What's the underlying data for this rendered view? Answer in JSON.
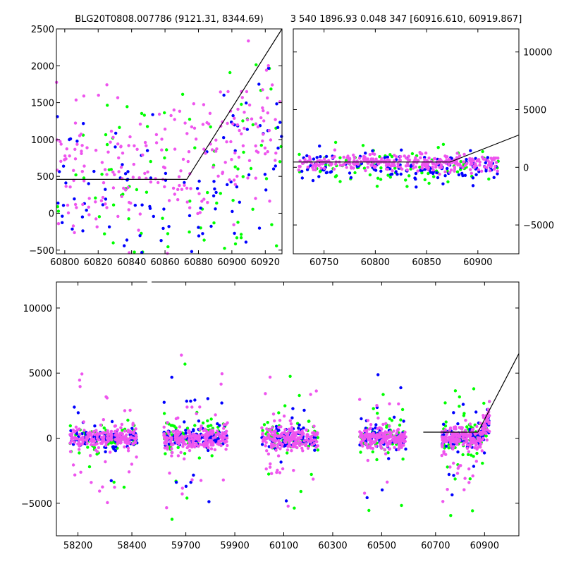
{
  "chart_data": [
    {
      "id": "tl",
      "type": "scatter",
      "title": "BLG20T0808.007786 (9121.31, 8344.69)",
      "xlim": [
        60795,
        60930
      ],
      "ylim": [
        -550,
        2500
      ],
      "xticks": [
        60800,
        60820,
        60840,
        60860,
        60880,
        60900,
        60920
      ],
      "yticks": [
        -500,
        0,
        500,
        1000,
        1500,
        2000,
        2500
      ],
      "ytick_side": "left",
      "series": [
        {
          "name": "green",
          "color": "#00ff00",
          "n": 90,
          "xr": [
            60795,
            60930
          ],
          "mean": 300,
          "sd": 700
        },
        {
          "name": "blue",
          "color": "#0000ff",
          "n": 100,
          "xr": [
            60795,
            60930
          ],
          "mean": 250,
          "sd": 500
        },
        {
          "name": "magenta",
          "color": "#ee55ee",
          "n": 230,
          "xr": [
            60795,
            60930
          ],
          "mean": 550,
          "sd": 450
        }
      ],
      "model_line": [
        [
          60795,
          460
        ],
        [
          60873,
          460
        ],
        [
          60930,
          2500
        ]
      ]
    },
    {
      "id": "tr",
      "type": "scatter",
      "title": "3 540 1896.93 0.048 347 [60916.610, 60919.867]",
      "xlim": [
        60720,
        60940
      ],
      "ylim": [
        -7500,
        12000
      ],
      "xticks": [
        60750,
        60800,
        60850,
        60900
      ],
      "yticks": [
        -5000,
        0,
        5000,
        10000
      ],
      "ytick_side": "right",
      "series": [
        {
          "name": "green",
          "color": "#00ff00",
          "n": 90,
          "xr": [
            60725,
            60920
          ],
          "mean": 0,
          "sd": 900
        },
        {
          "name": "blue",
          "color": "#0000ff",
          "n": 140,
          "xr": [
            60725,
            60920
          ],
          "mean": 0,
          "sd": 600
        },
        {
          "name": "magenta",
          "color": "#ee55ee",
          "n": 320,
          "xr": [
            60725,
            60920
          ],
          "mean": 400,
          "sd": 350
        }
      ],
      "model_line": [
        [
          60720,
          460
        ],
        [
          60873,
          460
        ],
        [
          60940,
          2800
        ]
      ]
    },
    {
      "id": "bottom",
      "type": "scatter",
      "title": "",
      "ylim": [
        -7500,
        12000
      ],
      "yticks": [
        -5000,
        0,
        5000,
        10000
      ],
      "ytick_side": "left",
      "segments": [
        {
          "xlim": [
            58120,
            58460
          ],
          "xticks": [
            58200,
            58400
          ],
          "seasons": [
            [
              58170,
              58420
            ]
          ]
        },
        {
          "xlim": [
            59560,
            60640
          ],
          "xticks": [
            59700,
            59900,
            60100,
            60300,
            60500
          ],
          "seasons": [
            [
              59610,
              59870
            ],
            [
              60010,
              60240
            ],
            [
              60410,
              60600
            ]
          ]
        },
        {
          "xlim": [
            60620,
            61040
          ],
          "xticks": [
            60700,
            60900
          ],
          "seasons": [
            [
              60725,
              60920
            ]
          ]
        }
      ],
      "series": [
        {
          "name": "green",
          "color": "#00ff00",
          "n": 380,
          "mean": 0,
          "sd": 1300
        },
        {
          "name": "blue",
          "color": "#0000ff",
          "n": 480,
          "mean": 0,
          "sd": 800
        },
        {
          "name": "magenta",
          "color": "#ee55ee",
          "n": 1050,
          "mean": 0,
          "sd": 900
        }
      ],
      "model_line": [
        [
          60650,
          460
        ],
        [
          60873,
          460
        ],
        [
          61040,
          6500
        ]
      ]
    }
  ]
}
